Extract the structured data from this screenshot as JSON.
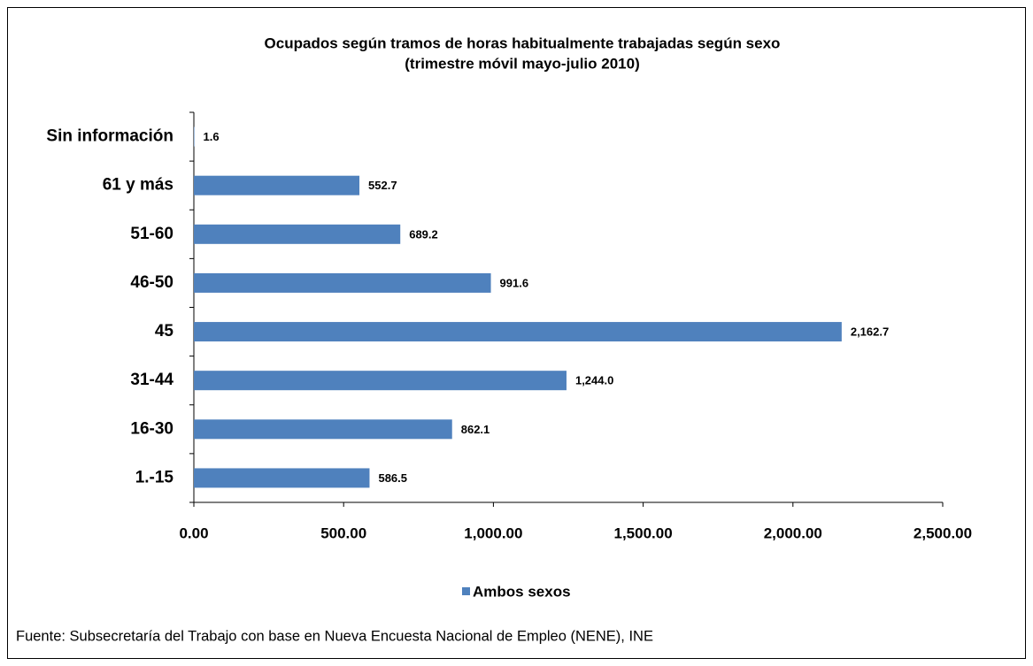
{
  "chart_data": {
    "type": "hbar",
    "title": "Ocupados según tramos de horas habitualmente trabajadas según sexo",
    "subtitle": "(trimestre móvil mayo-julio 2010)",
    "categories": [
      "Sin información",
      "61 y más",
      "51-60",
      "46-50",
      "45",
      "31-44",
      "16-30",
      "1.-15"
    ],
    "series": [
      {
        "name": "Ambos sexos",
        "color": "#4f81bd",
        "values": [
          1.6,
          552.7,
          689.2,
          991.6,
          2162.7,
          1244.0,
          862.1,
          586.5
        ],
        "value_labels": [
          "1.6",
          "552.7",
          "689.2",
          "991.6",
          "2,162.7",
          "1,244.0",
          "862.1",
          "586.5"
        ]
      }
    ],
    "xlim": [
      0,
      2500
    ],
    "xticks": [
      {
        "value": 0,
        "label": "0.00"
      },
      {
        "value": 500,
        "label": "500.00"
      },
      {
        "value": 1000,
        "label": "1,000.00"
      },
      {
        "value": 1500,
        "label": "1,500.00"
      },
      {
        "value": 2000,
        "label": "2,000.00"
      },
      {
        "value": 2500,
        "label": "2,500.00"
      }
    ],
    "legend": "bottom",
    "source": "Fuente: Subsecretaría del Trabajo con base en Nueva Encuesta Nacional de Empleo (NENE), INE"
  }
}
